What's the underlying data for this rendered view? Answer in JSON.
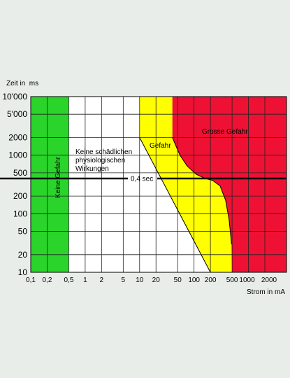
{
  "chart_data": {
    "type": "area",
    "title": "",
    "ylabel": "Zeit in  ms",
    "xlabel": "Strom in mA",
    "x_scale": "log",
    "y_scale": "log",
    "xlim": [
      0.1,
      5000
    ],
    "ylim": [
      10,
      10000
    ],
    "x_ticks": [
      {
        "v": 0.1,
        "label": "0,1"
      },
      {
        "v": 0.2,
        "label": "0,2"
      },
      {
        "v": 0.5,
        "label": "0,5"
      },
      {
        "v": 1,
        "label": "1"
      },
      {
        "v": 2,
        "label": "2"
      },
      {
        "v": 5,
        "label": "5"
      },
      {
        "v": 10,
        "label": "10"
      },
      {
        "v": 20,
        "label": "20"
      },
      {
        "v": 50,
        "label": "50"
      },
      {
        "v": 100,
        "label": "100"
      },
      {
        "v": 200,
        "label": "200"
      },
      {
        "v": 500,
        "label": "500"
      },
      {
        "v": 1000,
        "label": "1000"
      },
      {
        "v": 2000,
        "label": "2000"
      }
    ],
    "y_ticks": [
      {
        "v": 10,
        "label": "10"
      },
      {
        "v": 20,
        "label": "20"
      },
      {
        "v": 50,
        "label": "50"
      },
      {
        "v": 100,
        "label": "100"
      },
      {
        "v": 200,
        "label": "200"
      },
      {
        "v": 500,
        "label": "500"
      },
      {
        "v": 1000,
        "label": "1000"
      },
      {
        "v": 2000,
        "label": "2000"
      },
      {
        "v": 5000,
        "label": "5'000"
      },
      {
        "v": 10000,
        "label": "10'000"
      }
    ],
    "grid": true,
    "zones": [
      {
        "name": "Keine Gefahr",
        "color": "#2ad42a",
        "boundary": [
          [
            0.1,
            10000
          ],
          [
            0.5,
            10000
          ],
          [
            0.5,
            10
          ],
          [
            0.1,
            10
          ]
        ]
      },
      {
        "name": "Keine schädlichen physiologischen Wirkungen",
        "color": "#ffffff",
        "boundary": [
          [
            0.5,
            10000
          ],
          [
            10,
            10000
          ],
          [
            10,
            2000
          ],
          [
            200,
            10
          ],
          [
            0.5,
            10
          ]
        ]
      },
      {
        "name": "Gefahr",
        "color": "#ffff00",
        "boundary": [
          [
            10,
            10000
          ],
          [
            40,
            10000
          ],
          [
            40,
            2000
          ],
          [
            55,
            1000
          ],
          [
            75,
            650
          ],
          [
            110,
            470
          ],
          [
            160,
            400
          ],
          [
            220,
            370
          ],
          [
            300,
            300
          ],
          [
            380,
            170
          ],
          [
            440,
            80
          ],
          [
            490,
            30
          ],
          [
            500,
            10
          ],
          [
            200,
            10
          ],
          [
            10,
            2000
          ]
        ]
      },
      {
        "name": "Grosse Gefahr",
        "color": "#ee1133",
        "boundary": [
          [
            40,
            10000
          ],
          [
            5000,
            10000
          ],
          [
            5000,
            10
          ],
          [
            500,
            10
          ],
          [
            490,
            30
          ],
          [
            440,
            80
          ],
          [
            380,
            170
          ],
          [
            300,
            300
          ],
          [
            220,
            370
          ],
          [
            160,
            400
          ],
          [
            110,
            470
          ],
          [
            75,
            650
          ],
          [
            55,
            1000
          ],
          [
            40,
            2000
          ]
        ]
      }
    ],
    "reference_line": {
      "y": 400,
      "label": "0,4 sec"
    },
    "zone_labels": {
      "keine_gefahr": "Keine Gefahr",
      "keine_schaedlichen": [
        "Keine schädlichen",
        "physiologischen",
        "Wirkungen"
      ],
      "gefahr": "Gefahr",
      "grosse_gefahr": "Grosse Gefahr"
    }
  }
}
